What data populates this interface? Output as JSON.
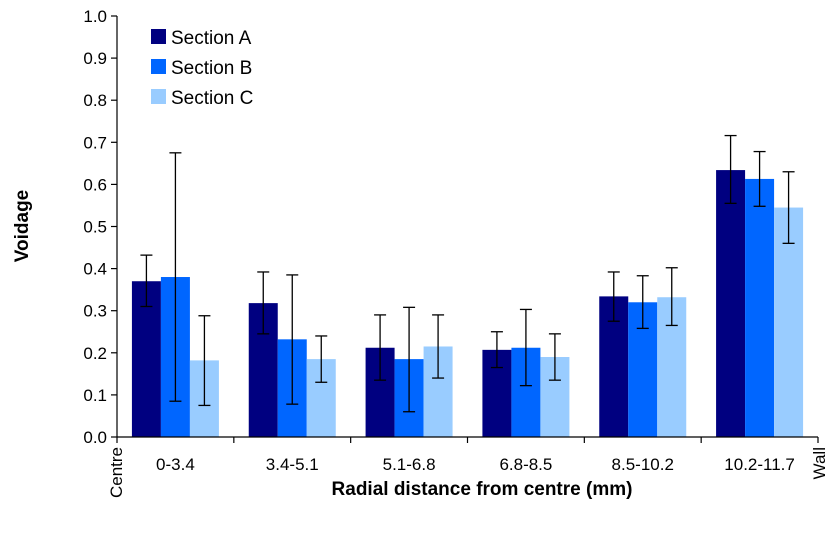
{
  "chart_data": {
    "type": "bar",
    "title": "",
    "xlabel": "Radial distance from centre (mm)",
    "ylabel": "Voidage",
    "ylim": [
      0,
      1.0
    ],
    "yticks": [
      "0.0",
      "0.1",
      "0.2",
      "0.3",
      "0.4",
      "0.5",
      "0.6",
      "0.7",
      "0.8",
      "0.9",
      "1.0"
    ],
    "categories": [
      "0-3.4",
      "3.4-5.1",
      "5.1-6.8",
      "6.8-8.5",
      "8.5-10.2",
      "10.2-11.7"
    ],
    "edge_labels": {
      "left": "Centre",
      "right": "Wall"
    },
    "grid": false,
    "legend_position": "top-left",
    "series": [
      {
        "name": "Section A",
        "color": "#000080",
        "values": [
          0.37,
          0.318,
          0.212,
          0.207,
          0.334,
          0.634
        ],
        "error_low": [
          0.31,
          0.245,
          0.135,
          0.165,
          0.275,
          0.555
        ],
        "error_high": [
          0.432,
          0.392,
          0.29,
          0.25,
          0.392,
          0.716
        ]
      },
      {
        "name": "Section B",
        "color": "#0066ff",
        "values": [
          0.38,
          0.232,
          0.185,
          0.212,
          0.32,
          0.613
        ],
        "error_low": [
          0.085,
          0.078,
          0.06,
          0.122,
          0.258,
          0.548
        ],
        "error_high": [
          0.675,
          0.385,
          0.308,
          0.303,
          0.383,
          0.678
        ]
      },
      {
        "name": "Section C",
        "color": "#99ccff",
        "values": [
          0.182,
          0.185,
          0.215,
          0.19,
          0.332,
          0.545
        ],
        "error_low": [
          0.075,
          0.13,
          0.14,
          0.135,
          0.265,
          0.46
        ],
        "error_high": [
          0.288,
          0.24,
          0.29,
          0.245,
          0.402,
          0.63
        ]
      }
    ]
  }
}
